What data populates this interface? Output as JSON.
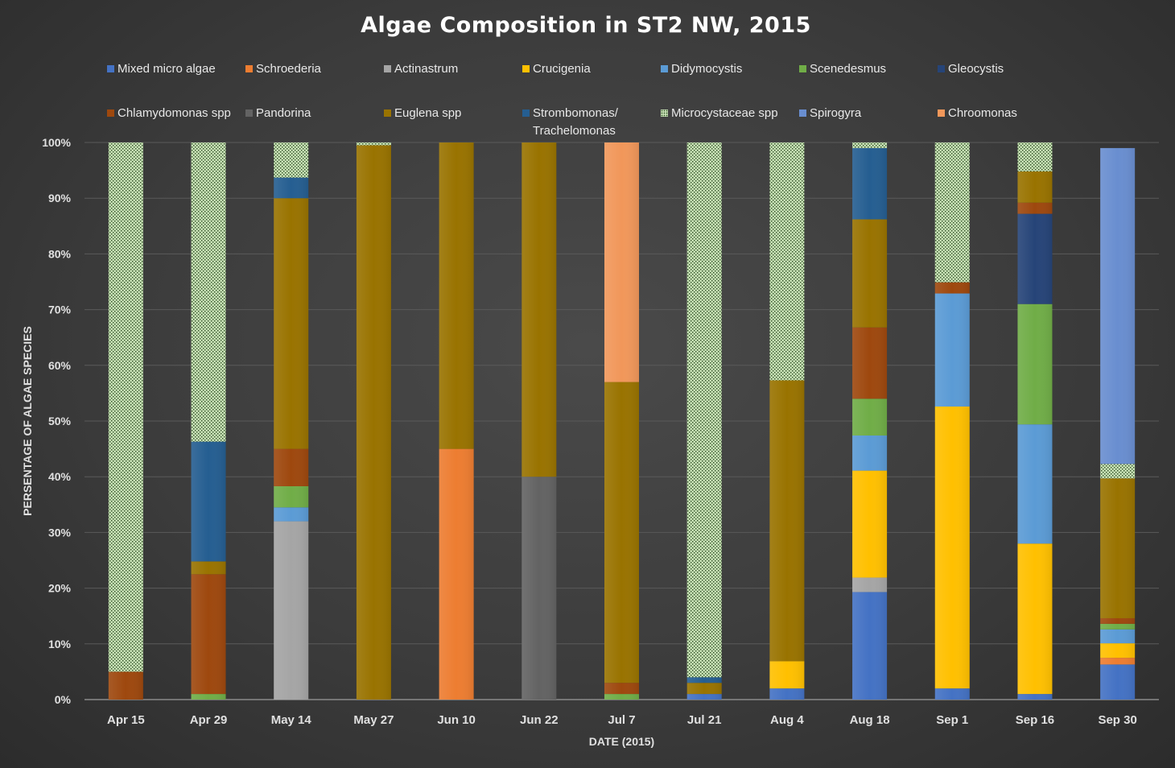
{
  "chart_data": {
    "type": "bar",
    "stacked": true,
    "percent": true,
    "title": "Algae Composition in ST2 NW, 2015",
    "xlabel": "DATE (2015)",
    "ylabel": "PERSENTAGE OF ALGAE SPECIES",
    "ylim": [
      0,
      100
    ],
    "yticks": [
      "0%",
      "10%",
      "20%",
      "30%",
      "40%",
      "50%",
      "60%",
      "70%",
      "80%",
      "90%",
      "100%"
    ],
    "grid": true,
    "legend_position": "top",
    "categories": [
      "Apr 15",
      "Apr 29",
      "May 14",
      "May 27",
      "Jun 10",
      "Jun 22",
      "Jul 7",
      "Jul 21",
      "Aug 4",
      "Aug 18",
      "Sep 1",
      "Sep 16",
      "Sep 30"
    ],
    "series": [
      {
        "name": "Mixed micro algae",
        "color": "#4472c4",
        "values": [
          0,
          0,
          0,
          0,
          0,
          0,
          0,
          1,
          2,
          19.3,
          2,
          1,
          6.3
        ]
      },
      {
        "name": "Schroederia",
        "color": "#ed7d31",
        "values": [
          0,
          0,
          0,
          0,
          45,
          0,
          0,
          0,
          0,
          0,
          0,
          0,
          1.2
        ]
      },
      {
        "name": "Actinastrum",
        "color": "#a5a5a5",
        "values": [
          0,
          0,
          32,
          0,
          0,
          0,
          0,
          0,
          0,
          2.6,
          0,
          0,
          0
        ]
      },
      {
        "name": "Crucigenia",
        "color": "#ffc000",
        "values": [
          0,
          0,
          0,
          0,
          0,
          0,
          0,
          0,
          4.9,
          19.2,
          50.6,
          27,
          2.6
        ]
      },
      {
        "name": "Didymocystis",
        "color": "#5b9bd5",
        "values": [
          0,
          0,
          2.5,
          0,
          0,
          0,
          0,
          0,
          0,
          6.3,
          20.3,
          21.4,
          2.5
        ]
      },
      {
        "name": "Scenedesmus",
        "color": "#70ad47",
        "values": [
          0,
          1,
          3.8,
          0,
          0,
          0,
          1,
          0,
          0,
          6.6,
          0,
          21.6,
          1
        ]
      },
      {
        "name": "Gleocystis",
        "color": "#264478",
        "values": [
          0,
          0,
          0,
          0,
          0,
          0,
          0,
          0,
          0,
          0,
          0,
          16.2,
          0
        ]
      },
      {
        "name": "Chlamydomonas spp",
        "color": "#9e480e",
        "values": [
          5,
          21.5,
          6.7,
          0,
          0,
          0,
          2,
          0,
          0,
          12.8,
          2,
          2,
          1
        ]
      },
      {
        "name": "Pandorina",
        "color": "#636363",
        "values": [
          0,
          0,
          0,
          0,
          0,
          40,
          0,
          0,
          0,
          0,
          0,
          0,
          0
        ]
      },
      {
        "name": "Euglena spp",
        "color": "#997300",
        "values": [
          0,
          2.3,
          45,
          99.5,
          55,
          60,
          54,
          2,
          50.4,
          19.4,
          0,
          5.6,
          25.1
        ]
      },
      {
        "name": "Strombomonas/ Trachelomonas",
        "color": "#255e91",
        "values": [
          0,
          21.5,
          3.7,
          0,
          0,
          0,
          0,
          1,
          0,
          12.8,
          0,
          0,
          0
        ]
      },
      {
        "name": "Microcystaceae spp",
        "color": "#c6e0b4",
        "pattern": "dotted",
        "values": [
          95,
          53.7,
          6.3,
          0.5,
          0,
          0,
          0,
          96,
          42.7,
          1,
          25.1,
          5.2,
          2.6
        ]
      },
      {
        "name": "Spirogyra",
        "color": "#698ed0",
        "values": [
          0,
          0,
          0,
          0,
          0,
          0,
          0,
          0,
          0,
          0,
          0,
          0,
          56.7
        ]
      },
      {
        "name": "Chroomonas",
        "color": "#f1975a",
        "values": [
          0,
          0,
          0,
          0,
          0,
          0,
          43,
          0,
          0,
          0,
          0,
          0,
          0
        ]
      }
    ]
  }
}
